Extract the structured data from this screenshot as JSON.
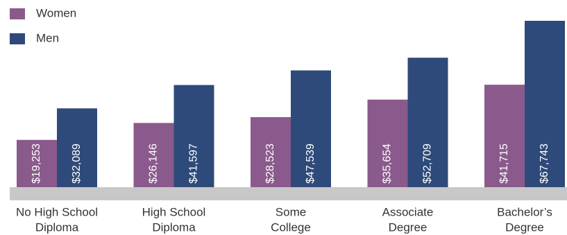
{
  "chart_data": {
    "type": "bar",
    "categories": [
      [
        "No High School",
        "Diploma"
      ],
      [
        "High School",
        "Diploma"
      ],
      [
        "Some",
        "College"
      ],
      [
        "Associate",
        "Degree"
      ],
      [
        "Bachelor’s",
        "Degree"
      ]
    ],
    "series": [
      {
        "name": "Women",
        "color": "#8b5a8c",
        "values": [
          19253,
          26146,
          28523,
          35654,
          41715
        ],
        "labels": [
          "$19,253",
          "$26,146",
          "$28,523",
          "$35,654",
          "$41,715"
        ]
      },
      {
        "name": "Men",
        "color": "#2e4a7a",
        "values": [
          32089,
          41597,
          47539,
          52709,
          67743
        ],
        "labels": [
          "$32,089",
          "$41,597",
          "$47,539",
          "$52,709",
          "$67,743"
        ]
      }
    ],
    "title": "",
    "xlabel": "",
    "ylabel": "",
    "ylim": [
      0,
      70000
    ],
    "grid": false,
    "legend_position": "top-left",
    "baseline_color": "#c8c8c8"
  }
}
